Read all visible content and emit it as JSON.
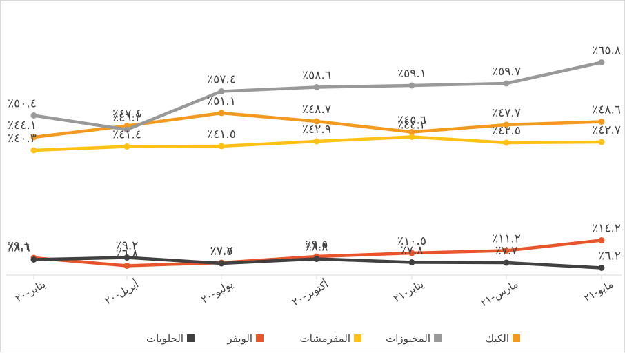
{
  "chart_data": {
    "type": "line",
    "categories": [
      "يناير-٢٠",
      "أبريل-٢٠",
      "يوليو-٢٠",
      "أكتوبر-٢٠",
      "يناير-٢١",
      "مارس-٢١",
      "مايو-٢١"
    ],
    "ylim": [
      0,
      60
    ],
    "grid": false,
    "legend_position": "bottom",
    "series": [
      {
        "name": "الكيك",
        "color": "#F39A1E",
        "values": [
          44.1,
          47.4,
          51.1,
          48.7,
          45.6,
          47.7,
          48.6
        ],
        "labels": [
          "٪٤٤.١",
          "٪٤٧.٤",
          "٪٥١.١",
          "٪٤٨.٧",
          "٪٤٥.٦",
          "٪٤٧.٧",
          "٪٤٨.٦"
        ]
      },
      {
        "name": "المخبوزات",
        "color": "#999999",
        "values": [
          50.4,
          46.3,
          57.4,
          58.6,
          59.1,
          59.7,
          65.8
        ],
        "labels": [
          "٪٥٠.٤",
          "٪٤٦.٣",
          "٪٥٧.٤",
          "٪٥٨.٦",
          "٪٥٩.١",
          "٪٥٩.٧",
          "٪٦٥.٨"
        ]
      },
      {
        "name": "المقرمشات",
        "color": "#FFC115",
        "values": [
          40.3,
          41.4,
          41.5,
          42.9,
          44.2,
          42.5,
          42.7
        ],
        "labels": [
          "٪٤٠.٣",
          "٪٤١.٤",
          "٪٤١.٥",
          "٪٤٢.٩",
          "٪٤٤.٢",
          "٪٤٢.٥",
          "٪٤٢.٧"
        ]
      },
      {
        "name": "الويفر",
        "color": "#E9552A",
        "values": [
          9.1,
          6.8,
          7.7,
          9.5,
          10.5,
          11.2,
          14.2
        ],
        "labels": [
          "٪٩.١",
          "٪٦.٨",
          "٪٧.٧",
          "٪٩.٥",
          "٪١٠.٥",
          "٪١١.٢",
          "٪١٤.٢"
        ]
      },
      {
        "name": "الحلويات",
        "color": "#404040",
        "values": [
          8.6,
          9.2,
          7.5,
          8.8,
          7.8,
          7.7,
          6.2
        ],
        "labels": [
          "٪٨.٦",
          "٪٩.٢",
          "٪٧.٥",
          "٪٨.٨",
          "٪٧.٨",
          "٪٧.٧",
          "٪٦.٢"
        ]
      }
    ]
  }
}
